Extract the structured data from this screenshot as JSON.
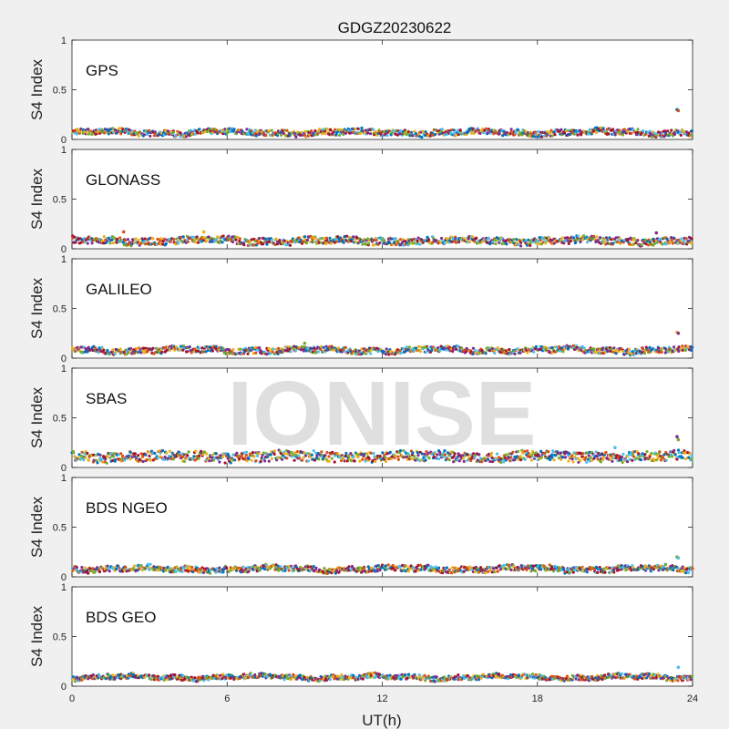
{
  "chart_data": {
    "type": "scatter",
    "title": "GDGZ20230622",
    "xlabel": "UT(h)",
    "ylabel": "S4 Index",
    "xlim": [
      0,
      24
    ],
    "ylim": [
      0,
      1
    ],
    "xticks": [
      0,
      6,
      12,
      18,
      24
    ],
    "yticks": [
      0,
      0.5,
      1
    ],
    "ytick_labels": [
      "0",
      "0.5",
      "1"
    ],
    "watermark": "IONISE",
    "series_colors": [
      "#0072BD",
      "#D95319",
      "#EDB120",
      "#7E2F8E",
      "#77AC30",
      "#4DBEEE",
      "#A2142F"
    ],
    "panels": [
      {
        "label": "GPS",
        "baseline": 0.07,
        "spread": 0.03,
        "outliers": [
          {
            "x": 23.4,
            "y": 0.3
          },
          {
            "x": 23.45,
            "y": 0.29
          }
        ]
      },
      {
        "label": "GLONASS",
        "baseline": 0.08,
        "spread": 0.035,
        "outliers": [
          {
            "x": 2.0,
            "y": 0.17
          },
          {
            "x": 5.1,
            "y": 0.17
          },
          {
            "x": 22.6,
            "y": 0.16
          }
        ]
      },
      {
        "label": "GALILEO",
        "baseline": 0.08,
        "spread": 0.03,
        "outliers": [
          {
            "x": 23.4,
            "y": 0.26
          },
          {
            "x": 23.45,
            "y": 0.25
          },
          {
            "x": 9.0,
            "y": 0.15
          }
        ]
      },
      {
        "label": "SBAS",
        "baseline": 0.11,
        "spread": 0.05,
        "outliers": [
          {
            "x": 23.4,
            "y": 0.31
          },
          {
            "x": 23.45,
            "y": 0.28
          },
          {
            "x": 21.0,
            "y": 0.2
          }
        ]
      },
      {
        "label": "BDS NGEO",
        "baseline": 0.08,
        "spread": 0.03,
        "outliers": [
          {
            "x": 23.4,
            "y": 0.2
          },
          {
            "x": 23.45,
            "y": 0.19
          }
        ]
      },
      {
        "label": "BDS GEO",
        "baseline": 0.09,
        "spread": 0.025,
        "outliers": [
          {
            "x": 23.45,
            "y": 0.19
          }
        ]
      }
    ]
  }
}
